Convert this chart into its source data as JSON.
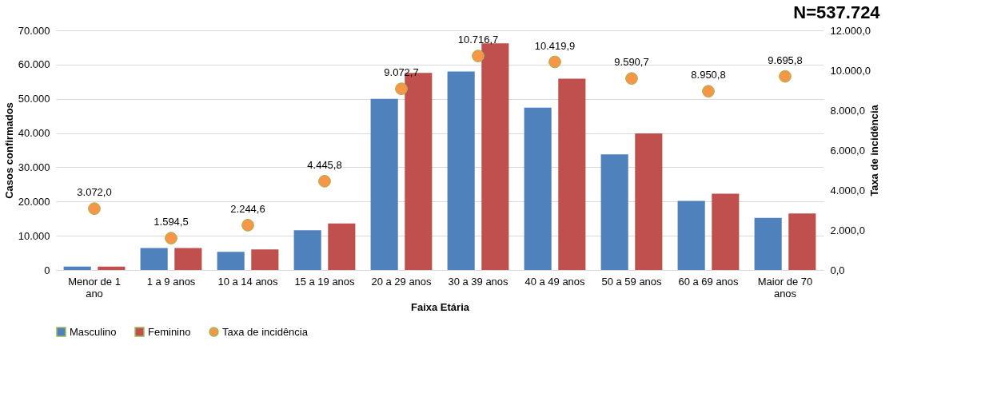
{
  "chart_data": {
    "type": "bar",
    "title": "N=537.724",
    "xlabel": "Faixa Etária",
    "ylabel": "Casos confirmados",
    "y2label": "Taxa de incidência",
    "categories": [
      "Menor de 1 ano",
      "1 a 9 anos",
      "10 a 14 anos",
      "15 a 19 anos",
      "20 a 29 anos",
      "30 a 39 anos",
      "40 a 49 anos",
      "50 a 59 anos",
      "60 a 69 anos",
      "Maior de 70 anos"
    ],
    "series": [
      {
        "name": "Masculino",
        "color": "#4f81bd",
        "values": [
          1000,
          6400,
          5300,
          11600,
          50000,
          58000,
          47400,
          33800,
          20200,
          15200
        ]
      },
      {
        "name": "Feminino",
        "color": "#c0504d",
        "values": [
          1000,
          6400,
          6000,
          13600,
          57600,
          66200,
          55900,
          39900,
          22300,
          16500
        ]
      },
      {
        "name": "Taxa de incidência",
        "type": "scatter",
        "axis": "y2",
        "marker": "circle",
        "color": "#f79646",
        "values": [
          3072.0,
          1594.5,
          2244.6,
          4445.8,
          9072.7,
          10716.7,
          10419.9,
          9590.7,
          8950.8,
          9695.8
        ],
        "value_labels": [
          "3.072,0",
          "1.594,5",
          "2.244,6",
          "4.445,8",
          "9.072,7",
          "10.716,7",
          "10.419,9",
          "9.590,7",
          "8.950,8",
          "9.695,8"
        ]
      }
    ],
    "ylim": [
      0,
      70000
    ],
    "yticks": [
      0,
      {
        "value": 10000,
        "label": "10.000"
      },
      {
        "value": 20000,
        "label": "20.000"
      },
      {
        "value": 30000,
        "label": "30.000"
      },
      {
        "value": 40000,
        "label": "40.000"
      },
      {
        "value": 50000,
        "label": "50.000"
      },
      {
        "value": 60000,
        "label": "60.000"
      },
      {
        "value": 70000,
        "label": "70.000"
      }
    ],
    "y2lim": [
      0,
      12000
    ],
    "y2ticks": [
      {
        "value": 0,
        "label": "0,0"
      },
      {
        "value": 2000,
        "label": "2.000,0"
      },
      {
        "value": 4000,
        "label": "4.000,0"
      },
      {
        "value": 6000,
        "label": "6.000,0"
      },
      {
        "value": 8000,
        "label": "8.000,0"
      },
      {
        "value": 10000,
        "label": "10.000,0"
      },
      {
        "value": 12000,
        "label": "12.000,0"
      }
    ],
    "grid": "y",
    "legend": "bottom"
  }
}
